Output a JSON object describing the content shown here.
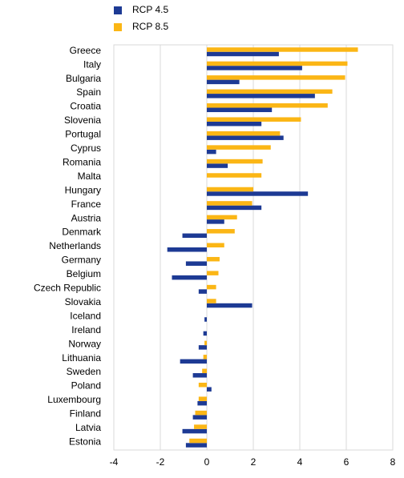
{
  "chart_data": {
    "type": "hbar",
    "categories": [
      "Greece",
      "Italy",
      "Bulgaria",
      "Spain",
      "Croatia",
      "Slovenia",
      "Portugal",
      "Cyprus",
      "Romania",
      "Malta",
      "Hungary",
      "France",
      "Austria",
      "Denmark",
      "Netherlands",
      "Germany",
      "Belgium",
      "Czech Republic",
      "Slovakia",
      "Iceland",
      "Ireland",
      "Norway",
      "Lithuania",
      "Sweden",
      "Poland",
      "Luxembourg",
      "Finland",
      "Latvia",
      "Estonia"
    ],
    "series": [
      {
        "name": "RCP 4.5",
        "color": "#1d3a94",
        "values": [
          3.1,
          4.1,
          1.4,
          4.65,
          2.8,
          2.35,
          3.3,
          0.4,
          0.9,
          null,
          4.35,
          2.35,
          0.75,
          -1.05,
          -1.7,
          -0.9,
          -1.5,
          -0.35,
          1.95,
          -0.1,
          -0.15,
          -0.35,
          -1.15,
          -0.6,
          0.2,
          -0.4,
          -0.6,
          -1.05,
          -0.9
        ]
      },
      {
        "name": "RCP 8.5",
        "color": "#fbb615",
        "values": [
          6.5,
          6.05,
          5.95,
          5.4,
          5.2,
          4.05,
          3.15,
          2.75,
          2.4,
          2.35,
          2.0,
          1.95,
          1.3,
          1.2,
          0.75,
          0.55,
          0.5,
          0.4,
          0.4,
          0.0,
          0.0,
          -0.1,
          -0.15,
          -0.2,
          -0.35,
          -0.35,
          -0.5,
          -0.55,
          -0.75
        ]
      }
    ],
    "xlim": [
      -4,
      8
    ],
    "xticks": [
      -4,
      -2,
      0,
      2,
      4,
      6,
      8
    ],
    "grid": true,
    "legend": "top-left"
  }
}
